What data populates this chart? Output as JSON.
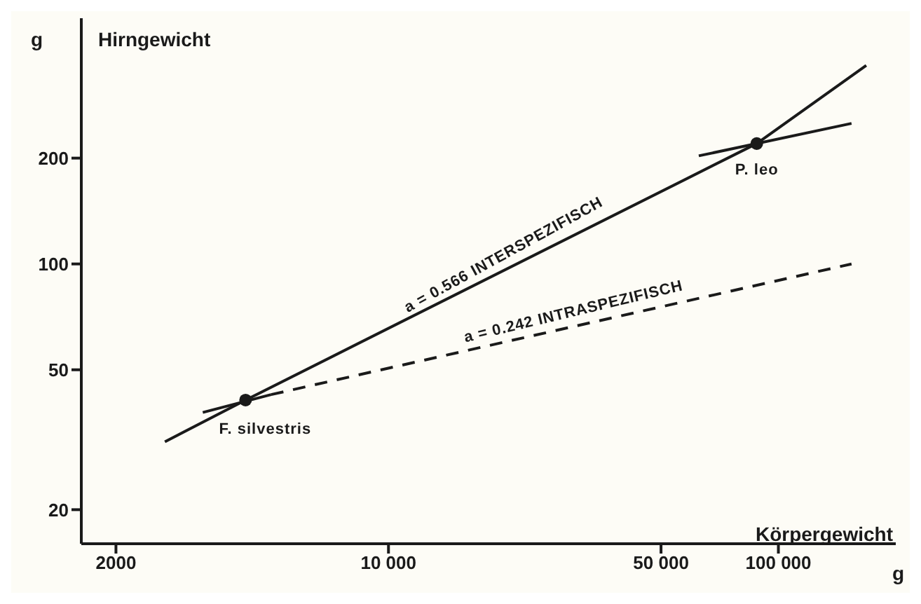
{
  "chart_data": {
    "type": "line",
    "xlabel": "Körpergewicht",
    "ylabel": "Hirngewicht",
    "log": "xy",
    "grid": false,
    "xlim": [
      1630,
      200000
    ],
    "ylim": [
      16,
      500
    ],
    "xticks": [
      {
        "value": 2000,
        "label": "2000"
      },
      {
        "value": 10000,
        "label": "10 000"
      },
      {
        "value": 50000,
        "label": "50 000"
      },
      {
        "value": 100000,
        "label": "100 000"
      }
    ],
    "yticks": [
      20,
      50,
      100,
      200
    ],
    "series": [
      {
        "color": "#1a1a1a",
        "x": [
          2670,
          4300,
          88000,
          168000
        ],
        "values": [
          31.2,
          41,
          220,
          367
        ],
        "line_style": "solid"
      },
      {
        "color": "#1a1a1a",
        "x": [
          3340,
          5000
        ],
        "values": [
          37.8,
          42.5
        ],
        "line_style": "solid"
      },
      {
        "color": "#1a1a1a",
        "x": [
          5000,
          154000
        ],
        "values": [
          42.5,
          100
        ],
        "line_style": "dashed"
      },
      {
        "color": "#1a1a1a",
        "x": [
          62500,
          154000
        ],
        "values": [
          203,
          251
        ],
        "line_style": "solid"
      },
      {
        "type": "scatter",
        "color": "#1a1a1a",
        "x": [
          4300,
          88000
        ],
        "values": [
          41,
          220
        ],
        "marker": "circle"
      }
    ],
    "annotations": [
      {
        "text": "F. silvestris",
        "x": 4300,
        "y": 41
      },
      {
        "text": "P. leo",
        "x": 88000,
        "y": 220
      },
      {
        "text": "a = 0.566   INTERSPEZIFISCH",
        "x": 20000,
        "y": 96
      },
      {
        "text": "a = 0.242   INTRASPEZIFISCH",
        "x": 30000,
        "y": 66
      },
      "g",
      "g"
    ]
  }
}
